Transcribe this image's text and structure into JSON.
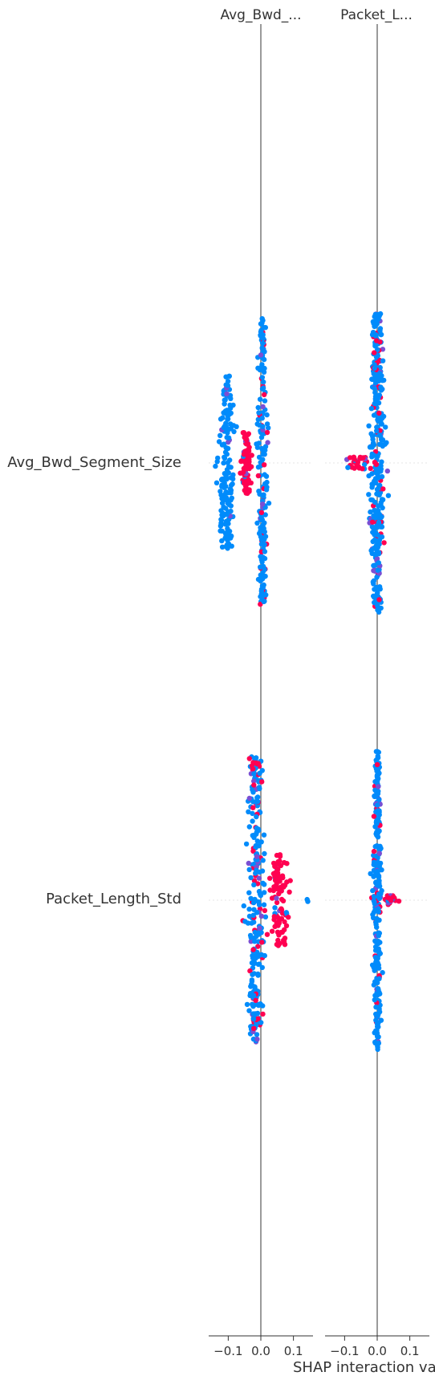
{
  "chart_data": {
    "type": "scatter",
    "subtype": "shap-interaction-beeswarm",
    "columns": [
      {
        "title": "Avg_Bwd_...",
        "xlim": [
          -0.16,
          0.16
        ],
        "ticks": [
          -0.1,
          0.0,
          0.1
        ],
        "tick_labels": [
          "−0.1",
          "0.0",
          "0.1"
        ]
      },
      {
        "title": "Packet_L...",
        "xlim": [
          -0.16,
          0.16
        ],
        "ticks": [
          -0.1,
          0.0,
          0.1
        ],
        "tick_labels": [
          "−0.1",
          "0.0",
          "0.1"
        ]
      }
    ],
    "rows": [
      {
        "label": "Avg_Bwd_Segment_Size"
      },
      {
        "label": "Packet_Length_Std"
      }
    ],
    "xlabel": "SHAP interaction va",
    "color_scale": {
      "low": "#008bfb",
      "high": "#ff0051"
    },
    "grid": false,
    "cells": [
      {
        "row": 0,
        "col": 0,
        "clusters": [
          {
            "x": -0.105,
            "spread": 0.026,
            "y_extent": 0.58,
            "n": 170,
            "red_frac": 0.0
          },
          {
            "x": -0.045,
            "spread": 0.016,
            "y_extent": 0.2,
            "n": 80,
            "red_frac": 0.88
          },
          {
            "x": 0.005,
            "spread": 0.016,
            "y_extent": 0.95,
            "n": 190,
            "red_frac": 0.12
          }
        ]
      },
      {
        "row": 0,
        "col": 1,
        "clusters": [
          {
            "x": 0.0,
            "spread": 0.022,
            "y_extent": 0.98,
            "n": 330,
            "red_frac": 0.12
          },
          {
            "x": -0.06,
            "spread": 0.05,
            "y_extent": 0.04,
            "n": 30,
            "red_frac": 0.85
          }
        ]
      },
      {
        "row": 1,
        "col": 0,
        "clusters": [
          {
            "x": -0.015,
            "spread": 0.03,
            "y_extent": 0.95,
            "n": 260,
            "red_frac": 0.2
          },
          {
            "x": 0.06,
            "spread": 0.03,
            "y_extent": 0.3,
            "n": 90,
            "red_frac": 0.85
          },
          {
            "x": 0.145,
            "spread": 0.004,
            "y_extent": 0.02,
            "n": 2,
            "red_frac": 0.0
          }
        ]
      },
      {
        "row": 1,
        "col": 1,
        "clusters": [
          {
            "x": 0.0,
            "spread": 0.012,
            "y_extent": 0.98,
            "n": 290,
            "red_frac": 0.1
          },
          {
            "x": 0.04,
            "spread": 0.025,
            "y_extent": 0.03,
            "n": 25,
            "red_frac": 0.9
          }
        ]
      }
    ]
  }
}
